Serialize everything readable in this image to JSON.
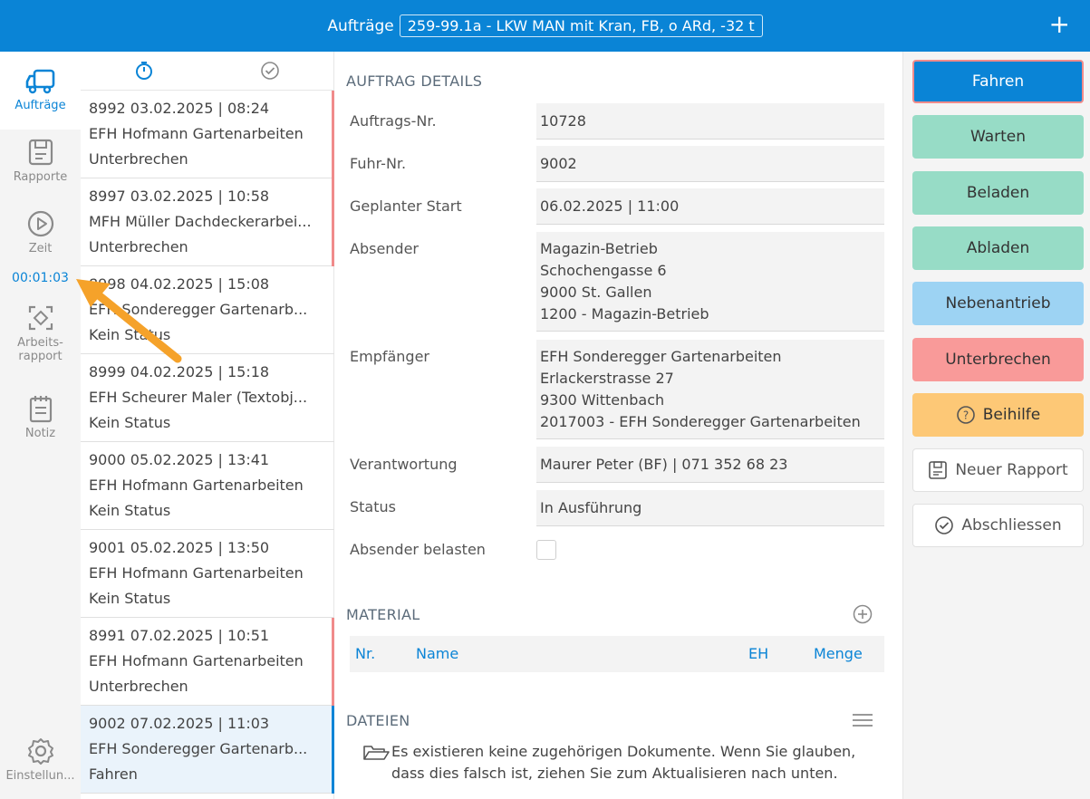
{
  "header": {
    "label": "Aufträge",
    "vehicle": "259-99.1a - LKW MAN mit Kran, FB, o ARd, -32 t"
  },
  "nav": {
    "auftraege": "Aufträge",
    "rapporte": "Rapporte",
    "zeit": "Zeit",
    "timer": "00:01:03",
    "arbeitsrapport_1": "Arbeits-",
    "arbeitsrapport_2": "rapport",
    "notiz": "Notiz",
    "einstellungen": "Einstellun..."
  },
  "orders": [
    {
      "line1": "8992  03.02.2025 | 08:24",
      "line2": "EFH Hofmann Gartenarbeiten",
      "line3": "Unterbrechen",
      "stripe": "#f08b8b"
    },
    {
      "line1": "8997  03.02.2025 | 10:58",
      "line2": "MFH Müller Dachdeckerarbei...",
      "line3": "Unterbrechen",
      "stripe": "#f08b8b"
    },
    {
      "line1": "8998  04.02.2025 | 15:08",
      "line2": "EFH Sonderegger Gartenarb...",
      "line3": "Kein Status",
      "stripe": ""
    },
    {
      "line1": "8999  04.02.2025 | 15:18",
      "line2": "EFH Scheurer Maler (Textobj...",
      "line3": "Kein Status",
      "stripe": ""
    },
    {
      "line1": "9000  05.02.2025 | 13:41",
      "line2": "EFH Hofmann Gartenarbeiten",
      "line3": "Kein Status",
      "stripe": ""
    },
    {
      "line1": "9001  05.02.2025 | 13:50",
      "line2": "EFH Hofmann Gartenarbeiten",
      "line3": "Kein Status",
      "stripe": ""
    },
    {
      "line1": "8991  07.02.2025 | 10:51",
      "line2": "EFH Hofmann Gartenarbeiten",
      "line3": "Unterbrechen",
      "stripe": "#f08b8b"
    },
    {
      "line1": "9002  07.02.2025 | 11:03",
      "line2": "EFH Sonderegger Gartenarb...",
      "line3": "Fahren",
      "stripe": "#0a84d6"
    }
  ],
  "details": {
    "title": "AUFTRAG DETAILS",
    "auftragsnr_label": "Auftrags-Nr.",
    "auftragsnr": "10728",
    "fuhrnr_label": "Fuhr-Nr.",
    "fuhrnr": "9002",
    "start_label": "Geplanter Start",
    "start": "06.02.2025 | 11:00",
    "absender_label": "Absender",
    "absender": [
      "Magazin-Betrieb",
      "Schochengasse 6",
      "9000 St. Gallen",
      "1200 - Magazin-Betrieb"
    ],
    "empfaenger_label": "Empfänger",
    "empfaenger": [
      "EFH Sonderegger Gartenarbeiten",
      "Erlackerstrasse 27",
      "9300 Wittenbach",
      "2017003 - EFH Sonderegger Gartenarbeiten"
    ],
    "verantwortung_label": "Verantwortung",
    "verantwortung": "Maurer Peter (BF) | 071 352 68 23",
    "status_label": "Status",
    "status": "In Ausführung",
    "absender_belasten_label": "Absender belasten"
  },
  "material": {
    "title": "MATERIAL",
    "col_nr": "Nr.",
    "col_name": "Name",
    "col_eh": "EH",
    "col_menge": "Menge"
  },
  "dateien": {
    "title": "DATEIEN",
    "line1": "Es existieren keine zugehörigen Dokumente. Wenn Sie glauben,",
    "line2": "dass dies falsch ist, ziehen Sie zum Aktualisieren nach unten."
  },
  "actions": [
    {
      "label": "Fahren",
      "bg": "#0a84d6",
      "color": "#ffffff",
      "border": "#f08b8b"
    },
    {
      "label": "Warten",
      "bg": "#97dcc6",
      "color": "#333333",
      "border": ""
    },
    {
      "label": "Beladen",
      "bg": "#97dcc6",
      "color": "#333333",
      "border": ""
    },
    {
      "label": "Abladen",
      "bg": "#97dcc6",
      "color": "#333333",
      "border": ""
    },
    {
      "label": "Nebenantrieb",
      "bg": "#9dd3f3",
      "color": "#333333",
      "border": ""
    },
    {
      "label": "Unterbrechen",
      "bg": "#f99a99",
      "color": "#333333",
      "border": ""
    },
    {
      "label": "Beihilfe",
      "bg": "#fdc876",
      "color": "#333333",
      "border": ""
    },
    {
      "label": "Neuer Rapport",
      "bg": "#ffffff",
      "color": "#555555",
      "border": "#e0e0e0"
    },
    {
      "label": "Abschliessen",
      "bg": "#ffffff",
      "color": "#555555",
      "border": "#e0e0e0"
    }
  ],
  "colors": {
    "accent": "#0a84d6",
    "arrow": "#f5a22a"
  }
}
